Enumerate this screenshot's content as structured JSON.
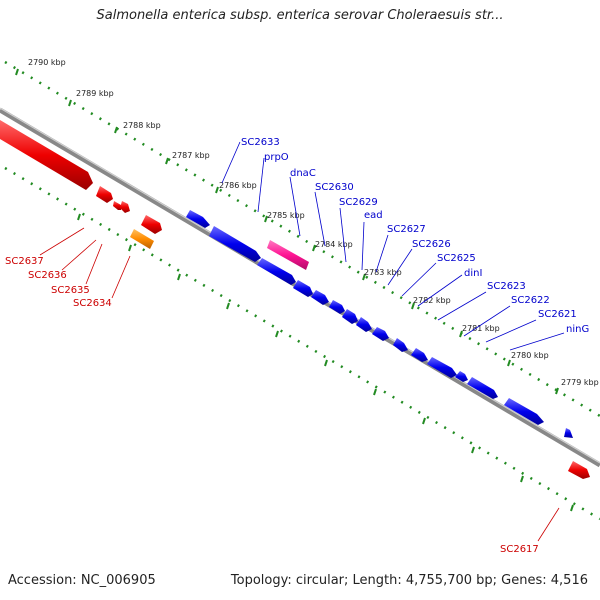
{
  "title": "Salmonella enterica subsp. enterica serovar Choleraesuis str...",
  "footer": {
    "accession": "Accession: NC_006905",
    "summary": "Topology: circular; Length: 4,755,700 bp; Genes: 4,516"
  },
  "colors": {
    "forward_gene": "#0000ee",
    "reverse_gene": "#ee0000",
    "orange_gene": "#ff8c00",
    "pink_gene": "#ff1493",
    "backbone": "#888888",
    "ticks": "#228b22",
    "forward_label": "#0000cc",
    "reverse_label": "#cc0000"
  },
  "kbp_labels": [
    "2790 kbp",
    "2789 kbp",
    "2788 kbp",
    "2787 kbp",
    "2786 kbp",
    "2785 kbp",
    "2784 kbp",
    "2783 kbp",
    "2782 kbp",
    "2781 kbp",
    "2780 kbp",
    "2779 kbp"
  ],
  "forward_labels": [
    "SC2633",
    "prpO",
    "dnaC",
    "SC2630",
    "SC2629",
    "ead",
    "SC2627",
    "SC2626",
    "SC2625",
    "dinI",
    "SC2623",
    "SC2622",
    "SC2621",
    "ninG"
  ],
  "reverse_labels": [
    "SC2637",
    "SC2636",
    "SC2635",
    "SC2634",
    "SC2617"
  ]
}
